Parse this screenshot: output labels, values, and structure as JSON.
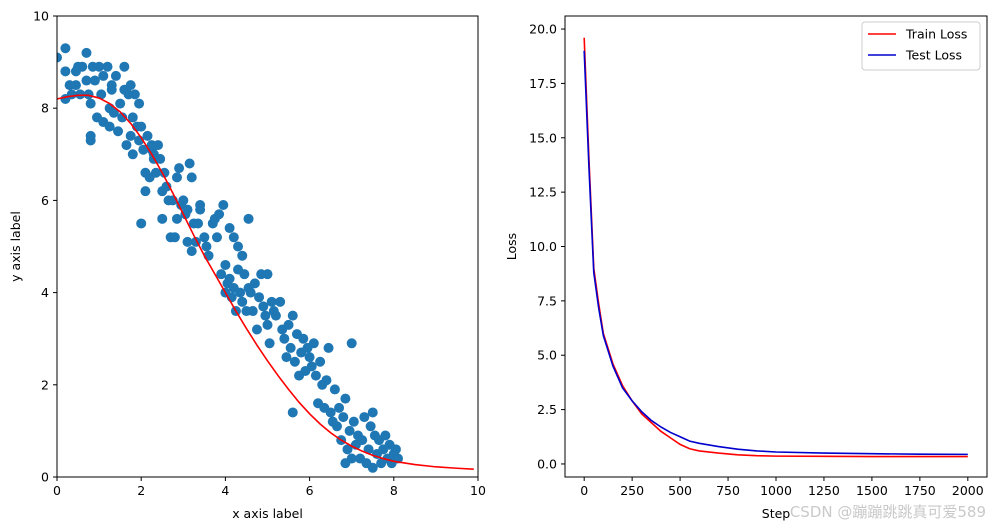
{
  "chart_data": [
    {
      "type": "scatter",
      "xlabel": "x axis label",
      "ylabel": "y axis label",
      "xlim": [
        0,
        10
      ],
      "ylim": [
        0,
        10
      ],
      "xticks": [
        "0",
        "2",
        "4",
        "6",
        "8",
        "10"
      ],
      "yticks": [
        "0",
        "2",
        "4",
        "6",
        "8",
        "10"
      ],
      "colors": {
        "points": "#1f77b4",
        "fit": "#ff0000"
      },
      "points": [
        [
          0.0,
          9.1
        ],
        [
          0.2,
          9.3
        ],
        [
          0.2,
          8.8
        ],
        [
          0.2,
          8.2
        ],
        [
          0.3,
          8.5
        ],
        [
          0.35,
          8.3
        ],
        [
          0.45,
          8.5
        ],
        [
          0.5,
          8.9
        ],
        [
          0.55,
          8.3
        ],
        [
          0.6,
          8.9
        ],
        [
          0.7,
          9.2
        ],
        [
          0.7,
          8.6
        ],
        [
          0.75,
          8.3
        ],
        [
          0.8,
          8.1
        ],
        [
          0.8,
          7.4
        ],
        [
          0.8,
          7.3
        ],
        [
          0.85,
          8.9
        ],
        [
          0.9,
          8.6
        ],
        [
          0.95,
          7.8
        ],
        [
          1.0,
          8.9
        ],
        [
          1.05,
          8.3
        ],
        [
          1.1,
          8.7
        ],
        [
          1.1,
          7.7
        ],
        [
          1.2,
          8.9
        ],
        [
          1.25,
          8.0
        ],
        [
          1.25,
          7.6
        ],
        [
          1.3,
          8.4
        ],
        [
          1.35,
          7.9
        ],
        [
          1.4,
          8.7
        ],
        [
          1.45,
          7.5
        ],
        [
          1.5,
          8.1
        ],
        [
          1.55,
          7.8
        ],
        [
          1.6,
          8.4
        ],
        [
          1.65,
          7.2
        ],
        [
          1.7,
          8.3
        ],
        [
          1.75,
          8.5
        ],
        [
          1.75,
          7.4
        ],
        [
          1.8,
          7.8
        ],
        [
          1.8,
          7.0
        ],
        [
          1.85,
          8.3
        ],
        [
          1.9,
          7.6
        ],
        [
          1.95,
          8.1
        ],
        [
          1.95,
          7.3
        ],
        [
          2.0,
          7.6
        ],
        [
          2.05,
          7.1
        ],
        [
          2.1,
          6.6
        ],
        [
          2.1,
          6.2
        ],
        [
          2.15,
          7.4
        ],
        [
          2.2,
          6.5
        ],
        [
          2.25,
          7.1
        ],
        [
          2.3,
          7.0
        ],
        [
          2.3,
          6.9
        ],
        [
          2.35,
          6.6
        ],
        [
          2.4,
          7.2
        ],
        [
          2.45,
          6.9
        ],
        [
          2.5,
          6.2
        ],
        [
          2.5,
          5.6
        ],
        [
          2.55,
          6.6
        ],
        [
          2.6,
          6.3
        ],
        [
          2.65,
          6.0
        ],
        [
          2.7,
          5.2
        ],
        [
          2.75,
          6.0
        ],
        [
          2.8,
          5.2
        ],
        [
          2.85,
          6.5
        ],
        [
          2.85,
          5.6
        ],
        [
          2.9,
          6.7
        ],
        [
          2.95,
          5.9
        ],
        [
          3.0,
          6.0
        ],
        [
          3.05,
          5.7
        ],
        [
          3.1,
          5.8
        ],
        [
          3.1,
          5.1
        ],
        [
          3.15,
          6.8
        ],
        [
          3.2,
          6.5
        ],
        [
          3.2,
          4.9
        ],
        [
          3.25,
          5.5
        ],
        [
          3.3,
          5.1
        ],
        [
          3.35,
          5.5
        ],
        [
          3.4,
          5.9
        ],
        [
          3.5,
          5.2
        ],
        [
          3.55,
          5.0
        ],
        [
          3.6,
          4.8
        ],
        [
          3.7,
          5.5
        ],
        [
          3.75,
          5.6
        ],
        [
          3.8,
          5.2
        ],
        [
          3.85,
          5.7
        ],
        [
          3.9,
          4.4
        ],
        [
          3.95,
          5.9
        ],
        [
          4.0,
          4.6
        ],
        [
          4.0,
          4.0
        ],
        [
          4.05,
          4.2
        ],
        [
          4.1,
          5.4
        ],
        [
          4.1,
          4.3
        ],
        [
          4.15,
          3.9
        ],
        [
          4.2,
          5.2
        ],
        [
          4.2,
          4.1
        ],
        [
          4.25,
          3.6
        ],
        [
          4.3,
          5.0
        ],
        [
          4.3,
          4.5
        ],
        [
          4.35,
          4.0
        ],
        [
          4.4,
          3.8
        ],
        [
          4.45,
          4.4
        ],
        [
          4.5,
          3.6
        ],
        [
          4.55,
          5.6
        ],
        [
          4.55,
          4.1
        ],
        [
          4.6,
          4.0
        ],
        [
          4.65,
          3.6
        ],
        [
          4.7,
          4.2
        ],
        [
          4.75,
          3.2
        ],
        [
          4.8,
          3.9
        ],
        [
          4.85,
          4.4
        ],
        [
          4.9,
          3.7
        ],
        [
          4.95,
          3.5
        ],
        [
          5.0,
          4.4
        ],
        [
          5.0,
          3.3
        ],
        [
          5.05,
          2.9
        ],
        [
          5.1,
          3.8
        ],
        [
          5.15,
          3.6
        ],
        [
          5.2,
          3.5
        ],
        [
          5.3,
          3.8
        ],
        [
          5.35,
          3.2
        ],
        [
          5.4,
          3.0
        ],
        [
          5.45,
          2.6
        ],
        [
          5.5,
          3.3
        ],
        [
          5.55,
          2.8
        ],
        [
          5.6,
          3.5
        ],
        [
          5.65,
          2.5
        ],
        [
          5.7,
          3.1
        ],
        [
          5.75,
          2.2
        ],
        [
          5.8,
          2.7
        ],
        [
          5.85,
          3.0
        ],
        [
          5.9,
          2.3
        ],
        [
          5.95,
          2.8
        ],
        [
          6.0,
          2.6
        ],
        [
          6.05,
          2.4
        ],
        [
          6.1,
          2.9
        ],
        [
          6.15,
          2.2
        ],
        [
          6.2,
          1.6
        ],
        [
          6.25,
          2.5
        ],
        [
          6.3,
          2.0
        ],
        [
          6.35,
          1.5
        ],
        [
          6.4,
          2.1
        ],
        [
          6.45,
          2.8
        ],
        [
          6.5,
          1.4
        ],
        [
          6.55,
          1.2
        ],
        [
          6.6,
          1.9
        ],
        [
          6.65,
          1.1
        ],
        [
          6.7,
          1.5
        ],
        [
          6.75,
          0.8
        ],
        [
          6.8,
          1.3
        ],
        [
          6.85,
          1.7
        ],
        [
          6.9,
          0.6
        ],
        [
          6.95,
          1.0
        ],
        [
          7.0,
          2.9
        ],
        [
          7.0,
          0.4
        ],
        [
          7.05,
          1.2
        ],
        [
          7.1,
          0.7
        ],
        [
          7.15,
          0.9
        ],
        [
          7.2,
          0.4
        ],
        [
          7.25,
          0.8
        ],
        [
          7.3,
          1.3
        ],
        [
          7.35,
          0.3
        ],
        [
          7.4,
          0.6
        ],
        [
          7.45,
          1.1
        ],
        [
          7.5,
          0.2
        ],
        [
          7.55,
          0.9
        ],
        [
          7.6,
          0.5
        ],
        [
          7.65,
          0.8
        ],
        [
          7.7,
          0.3
        ],
        [
          7.75,
          0.6
        ],
        [
          7.8,
          0.9
        ],
        [
          7.85,
          0.4
        ],
        [
          7.9,
          0.7
        ],
        [
          7.95,
          0.3
        ],
        [
          8.0,
          0.5
        ],
        [
          8.05,
          0.6
        ],
        [
          8.1,
          0.4
        ],
        [
          2.0,
          5.5
        ],
        [
          3.4,
          5.8
        ],
        [
          1.6,
          8.9
        ],
        [
          0.45,
          8.8
        ],
        [
          1.3,
          8.5
        ],
        [
          2.25,
          7.2
        ],
        [
          4.4,
          4.8
        ],
        [
          5.6,
          1.4
        ],
        [
          6.85,
          0.3
        ],
        [
          7.5,
          1.4
        ]
      ],
      "fit_curve": [
        [
          0.0,
          8.2
        ],
        [
          0.25,
          8.25
        ],
        [
          0.5,
          8.28
        ],
        [
          0.75,
          8.28
        ],
        [
          1.0,
          8.22
        ],
        [
          1.25,
          8.1
        ],
        [
          1.5,
          7.92
        ],
        [
          1.75,
          7.67
        ],
        [
          2.0,
          7.36
        ],
        [
          2.25,
          7.0
        ],
        [
          2.5,
          6.6
        ],
        [
          2.75,
          6.16
        ],
        [
          3.0,
          5.7
        ],
        [
          3.25,
          5.24
        ],
        [
          3.5,
          4.8
        ],
        [
          3.75,
          4.4
        ],
        [
          4.0,
          4.0
        ],
        [
          4.25,
          3.6
        ],
        [
          4.5,
          3.22
        ],
        [
          4.75,
          2.86
        ],
        [
          5.0,
          2.52
        ],
        [
          5.25,
          2.2
        ],
        [
          5.5,
          1.9
        ],
        [
          5.75,
          1.62
        ],
        [
          6.0,
          1.37
        ],
        [
          6.25,
          1.15
        ],
        [
          6.5,
          0.96
        ],
        [
          6.75,
          0.8
        ],
        [
          7.0,
          0.67
        ],
        [
          7.25,
          0.56
        ],
        [
          7.5,
          0.47
        ],
        [
          7.75,
          0.4
        ],
        [
          8.0,
          0.34
        ],
        [
          8.5,
          0.27
        ],
        [
          9.0,
          0.22
        ],
        [
          9.5,
          0.19
        ],
        [
          9.9,
          0.17
        ]
      ]
    },
    {
      "type": "line",
      "xlabel": "Step",
      "ylabel": "Loss",
      "xlim": [
        -100,
        2100
      ],
      "ylim": [
        -0.6,
        20.6
      ],
      "xticks": [
        "0",
        "250",
        "500",
        "750",
        "1000",
        "1250",
        "1500",
        "1750",
        "2000"
      ],
      "yticks": [
        "0.0",
        "2.5",
        "5.0",
        "7.5",
        "10.0",
        "12.5",
        "15.0",
        "17.5",
        "20.0"
      ],
      "legend": {
        "placement": "top-right"
      },
      "x": [
        0,
        25,
        50,
        75,
        100,
        150,
        200,
        250,
        300,
        350,
        400,
        450,
        500,
        550,
        600,
        700,
        800,
        900,
        1000,
        1250,
        1500,
        1750,
        2000
      ],
      "series": [
        {
          "name": "Train Loss",
          "color": "#ff0000",
          "values": [
            19.6,
            14.0,
            9.0,
            7.4,
            6.0,
            4.6,
            3.6,
            2.9,
            2.3,
            1.9,
            1.5,
            1.2,
            0.9,
            0.7,
            0.6,
            0.5,
            0.42,
            0.38,
            0.36,
            0.35,
            0.34,
            0.34,
            0.34
          ]
        },
        {
          "name": "Test Loss",
          "color": "#0000cd",
          "values": [
            19.0,
            13.6,
            8.8,
            7.2,
            5.9,
            4.5,
            3.5,
            2.9,
            2.4,
            2.0,
            1.7,
            1.45,
            1.25,
            1.05,
            0.95,
            0.8,
            0.68,
            0.6,
            0.55,
            0.5,
            0.47,
            0.45,
            0.44
          ]
        }
      ]
    }
  ],
  "watermark": "CSDN @蹦蹦跳跳真可爱589"
}
